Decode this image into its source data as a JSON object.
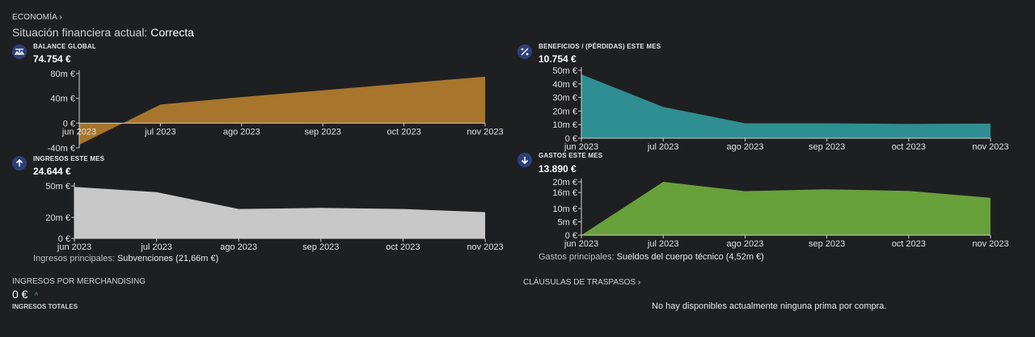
{
  "breadcrumb": "ECONOMÍA ›",
  "status": {
    "label": "Situación financiera actual:",
    "value": "Correcta"
  },
  "panels": {
    "balance": {
      "title": "BALANCE GLOBAL",
      "value": "74.754 €",
      "icon": "balance-icon",
      "color": "#a7752c",
      "chart_data": {
        "type": "area",
        "categories": [
          "jun 2023",
          "jul 2023",
          "ago 2023",
          "sep 2023",
          "oct 2023",
          "nov 2023"
        ],
        "values": [
          -35,
          30,
          42,
          53,
          64,
          75
        ],
        "ylim": [
          -40,
          80
        ],
        "yticks": [
          "80m €",
          "40m €",
          "0 €",
          "-40m €"
        ],
        "ytick_values": [
          80,
          40,
          0,
          -40
        ]
      }
    },
    "profit": {
      "title": "BENEFICIOS / (PÉRDIDAS) ESTE MES",
      "value": "10.754 €",
      "icon": "percent-icon",
      "color": "#2e8e91",
      "chart_data": {
        "type": "area",
        "categories": [
          "jun 2023",
          "jul 2023",
          "ago 2023",
          "sep 2023",
          "oct 2023",
          "nov 2023"
        ],
        "values": [
          47,
          23,
          11,
          11,
          10.5,
          10.8
        ],
        "ylim": [
          0,
          50
        ],
        "yticks": [
          "50m €",
          "40m €",
          "30m €",
          "20m €",
          "10m €",
          "0 €"
        ],
        "ytick_values": [
          50,
          40,
          30,
          20,
          10,
          0
        ]
      }
    },
    "income": {
      "title": "INGRESOS ESTE MES",
      "value": "24.644 €",
      "icon": "arrow-up-icon",
      "color": "#c8c8c8",
      "chart_data": {
        "type": "area",
        "categories": [
          "jun 2023",
          "jul 2023",
          "ago 2023",
          "sep 2023",
          "oct 2023",
          "nov 2023"
        ],
        "values": [
          49,
          44,
          28,
          29,
          28,
          25
        ],
        "ylim": [
          0,
          50
        ],
        "yticks": [
          "50m €",
          "20m €",
          "0 €"
        ],
        "ytick_values": [
          50,
          20,
          0
        ]
      },
      "note_label": "Ingresos principales:",
      "note_value": "Subvenciones (21,66m €)"
    },
    "expenses": {
      "title": "GASTOS ESTE MES",
      "value": "13.890 €",
      "icon": "arrow-down-icon",
      "color": "#68a03a",
      "chart_data": {
        "type": "area",
        "categories": [
          "jun 2023",
          "jul 2023",
          "ago 2023",
          "sep 2023",
          "oct 2023",
          "nov 2023"
        ],
        "values": [
          0,
          20,
          16.5,
          17.2,
          16.6,
          14
        ],
        "ylim": [
          0,
          20
        ],
        "yticks": [
          "20m €",
          "16m €",
          "10m €",
          "5m €",
          "0 €"
        ],
        "ytick_values": [
          20,
          16,
          10,
          5,
          0
        ]
      },
      "note_label": "Gastos principales:",
      "note_value": "Sueldos del cuerpo técnico (4,52m €)"
    }
  },
  "merch": {
    "title": "INGRESOS POR MERCHANDISING",
    "value": "0 €",
    "trend": "^",
    "subtitle": "INGRESOS TOTALES"
  },
  "transfers": {
    "title": "CLÁUSULAS DE TRASPASOS ›",
    "empty": "No hay disponibles actualmente ninguna prima por compra."
  }
}
